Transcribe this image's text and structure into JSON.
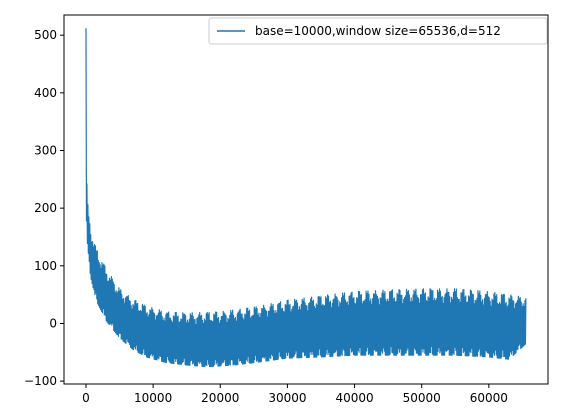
{
  "chart_data": {
    "type": "line",
    "title": "",
    "xlabel": "",
    "ylabel": "",
    "xlim": [
      -3277,
      68813
    ],
    "ylim": [
      -105,
      535
    ],
    "x_ticks": [
      0,
      10000,
      20000,
      30000,
      40000,
      50000,
      60000
    ],
    "y_ticks": [
      -100,
      0,
      100,
      200,
      300,
      400,
      500
    ],
    "grid": false,
    "legend": {
      "placement": "top-right"
    },
    "series": [
      {
        "name": "base=10000,window size=65536,d=512",
        "color": "#1f77b4",
        "envelope_upper": [
          [
            0,
            512
          ],
          [
            100,
            260
          ],
          [
            300,
            200
          ],
          [
            700,
            165
          ],
          [
            1500,
            130
          ],
          [
            3000,
            95
          ],
          [
            5000,
            60
          ],
          [
            7000,
            42
          ],
          [
            9000,
            30
          ],
          [
            12000,
            20
          ],
          [
            15000,
            18
          ],
          [
            20000,
            20
          ],
          [
            25000,
            28
          ],
          [
            30000,
            40
          ],
          [
            35000,
            48
          ],
          [
            40000,
            55
          ],
          [
            45000,
            58
          ],
          [
            50000,
            60
          ],
          [
            55000,
            60
          ],
          [
            60000,
            55
          ],
          [
            63000,
            50
          ],
          [
            65535,
            45
          ]
        ],
        "envelope_lower": [
          [
            0,
            200
          ],
          [
            100,
            150
          ],
          [
            300,
            120
          ],
          [
            700,
            80
          ],
          [
            1500,
            40
          ],
          [
            3000,
            5
          ],
          [
            5000,
            -25
          ],
          [
            7000,
            -45
          ],
          [
            9000,
            -58
          ],
          [
            12000,
            -68
          ],
          [
            15000,
            -72
          ],
          [
            18000,
            -75
          ],
          [
            22000,
            -72
          ],
          [
            25000,
            -68
          ],
          [
            30000,
            -60
          ],
          [
            35000,
            -58
          ],
          [
            40000,
            -55
          ],
          [
            45000,
            -55
          ],
          [
            50000,
            -55
          ],
          [
            55000,
            -55
          ],
          [
            60000,
            -58
          ],
          [
            63000,
            -62
          ],
          [
            65535,
            -35
          ]
        ]
      }
    ]
  }
}
